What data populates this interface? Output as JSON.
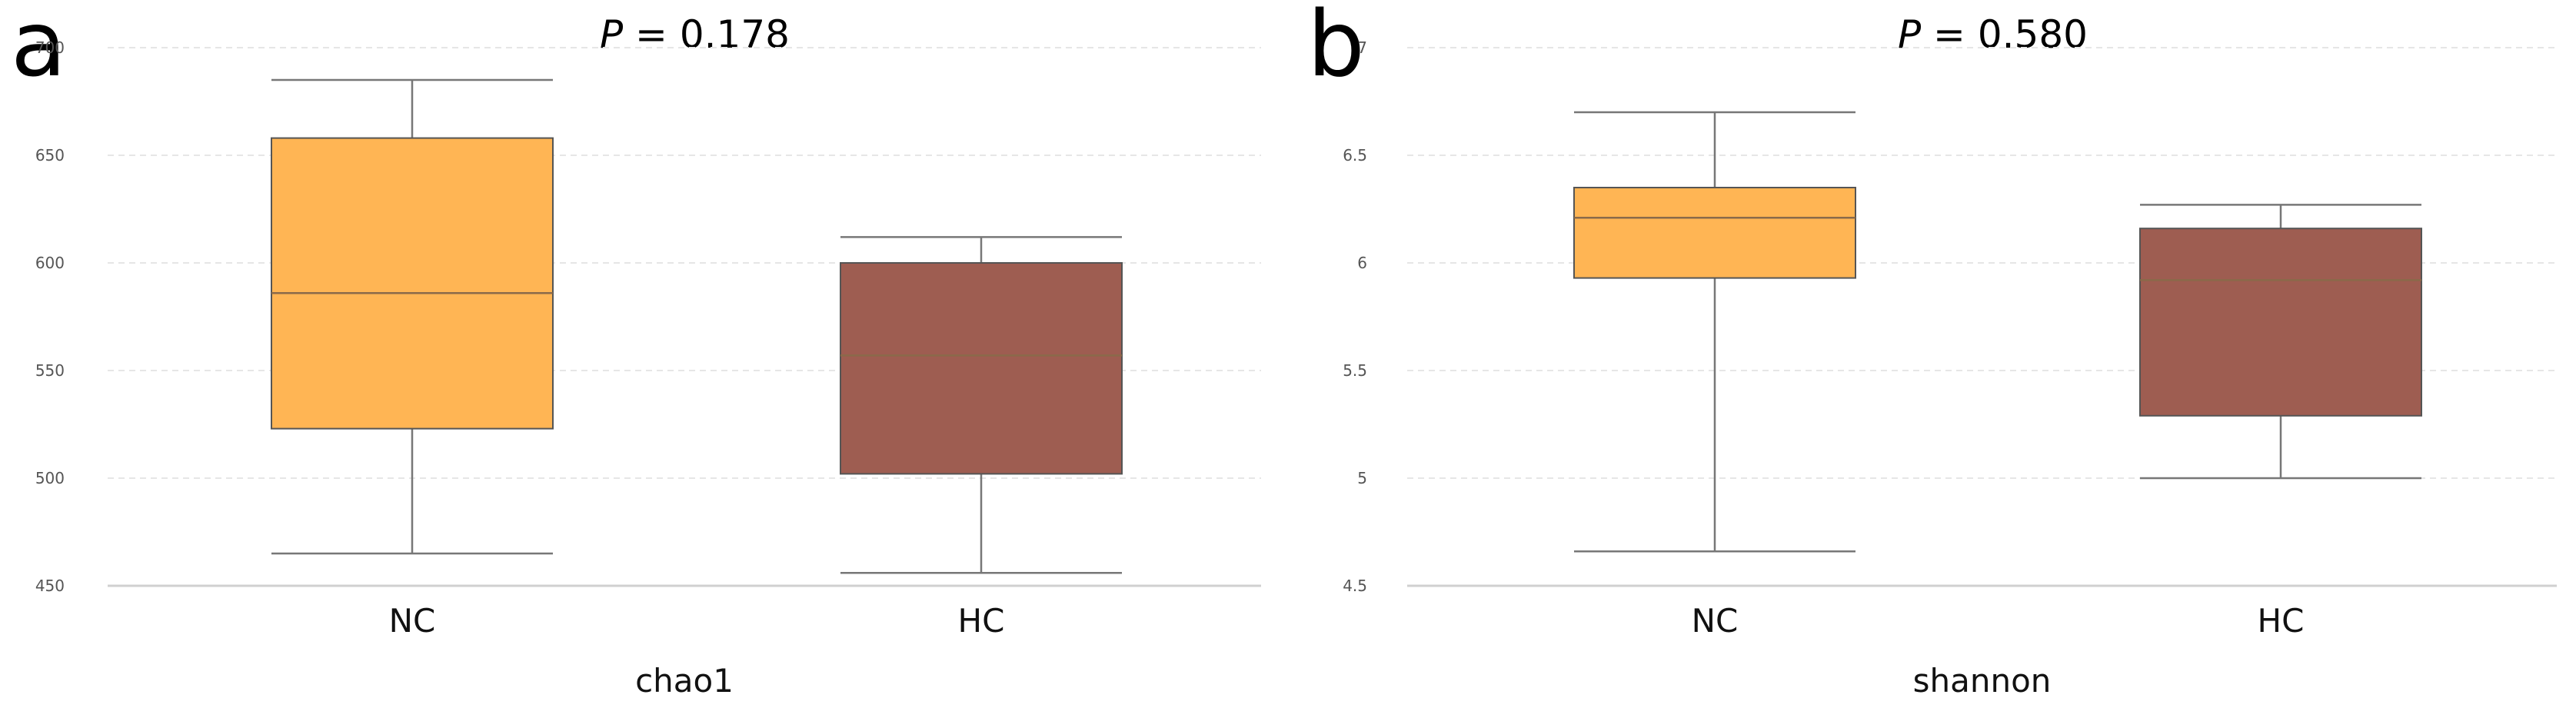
{
  "panels": [
    {
      "letter": "a",
      "title_prefix": "P",
      "title_value": " = 0.178"
    },
    {
      "letter": "b",
      "title_prefix": "P",
      "title_value": " = 0.580"
    }
  ],
  "colors": {
    "NC": "#ffb554",
    "HC": "#9e5d51",
    "median": "#8a6a4a",
    "whisker": "#777777",
    "grid": "#e6e6e6",
    "axis": "#d0d0d0"
  },
  "chart_data": [
    {
      "type": "box",
      "title": "P = 0.178",
      "xlabel": "chao1",
      "ylabel": "",
      "ylim": [
        450,
        700
      ],
      "yticks": [
        "450",
        "500",
        "550",
        "600",
        "650",
        "700"
      ],
      "categories": [
        "NC",
        "HC"
      ],
      "boxes": [
        {
          "name": "NC",
          "min": 465,
          "q1": 523,
          "median": 586,
          "q3": 658,
          "max": 685
        },
        {
          "name": "HC",
          "min": 456,
          "q1": 502,
          "median": 557,
          "q3": 600,
          "max": 612
        }
      ],
      "grid": true
    },
    {
      "type": "box",
      "title": "P = 0.580",
      "xlabel": "shannon",
      "ylabel": "",
      "ylim": [
        4.5,
        7
      ],
      "yticks": [
        "4.5",
        "5",
        "5.5",
        "6",
        "6.5",
        "7"
      ],
      "categories": [
        "NC",
        "HC"
      ],
      "boxes": [
        {
          "name": "NC",
          "min": 4.66,
          "q1": 5.93,
          "median": 6.21,
          "q3": 6.35,
          "max": 6.7
        },
        {
          "name": "HC",
          "min": 5.0,
          "q1": 5.29,
          "median": 5.92,
          "q3": 6.16,
          "max": 6.27
        }
      ],
      "grid": true
    }
  ]
}
